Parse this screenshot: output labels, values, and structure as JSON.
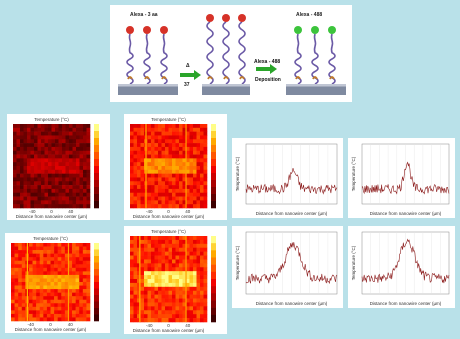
{
  "schematic": {
    "left_label": "Alexa - 3 aa",
    "right_label": "Alexa - 488",
    "arrow1_label": "Δ",
    "arrow1_sub": "37",
    "arrow2_label": "Alexa - 488",
    "arrow2_sub": "Deposition"
  },
  "heatmaps": [
    {
      "title": "Temperature (°C)",
      "xlabel": "Distance from nanowire center (µm)",
      "ticks": [
        "-40",
        "0",
        "40"
      ]
    },
    {
      "title": "Temperature (°C)",
      "xlabel": "Distance from nanowire center (µm)",
      "ticks": [
        "-40",
        "0",
        "40"
      ]
    },
    {
      "title": "Temperature (°C)",
      "xlabel": "Distance from nanowire center (µm)",
      "ticks": [
        "-40",
        "0",
        "40"
      ]
    },
    {
      "title": "Temperature (°C)",
      "xlabel": "Distance from nanowire center (µm)",
      "ticks": [
        "-40",
        "0",
        "40"
      ]
    }
  ],
  "profiles": [
    {
      "xlabel": "Distance from nanowire center (µm)",
      "ylabel": "Temperature (°C)"
    },
    {
      "xlabel": "Distance from nanowire center (µm)",
      "ylabel": "Temperature (°C)"
    },
    {
      "xlabel": "Distance from nanowire center (µm)",
      "ylabel": "Temperature (°C)"
    },
    {
      "xlabel": "Distance from nanowire center (µm)",
      "ylabel": "Temperature (°C)"
    }
  ],
  "colors": {
    "background": "#b9e1e9",
    "dna_red": "#d63228",
    "dna_green": "#3cc43c",
    "arrow_green": "#2aa52a",
    "substrate": "#7f8aa0"
  }
}
